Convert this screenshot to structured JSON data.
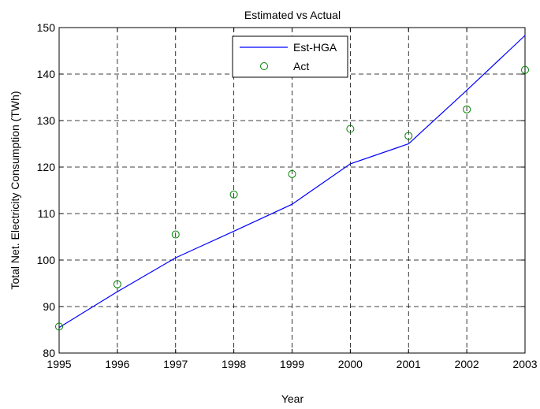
{
  "chart_data": {
    "type": "line",
    "title": "Estimated vs Actual",
    "xlabel": "Year",
    "ylabel": "Total Net. Electricity Consumption (TWh)",
    "xlim": [
      1995,
      2003
    ],
    "ylim": [
      80,
      150
    ],
    "xticks": [
      "1995",
      "1996",
      "1997",
      "1998",
      "1999",
      "2000",
      "2001",
      "2002",
      "2003"
    ],
    "yticks": [
      "80",
      "90",
      "100",
      "110",
      "120",
      "130",
      "140",
      "150"
    ],
    "grid": true,
    "legend_position": "top-center",
    "x": [
      1995,
      1996,
      1997,
      1998,
      1999,
      2000,
      2001,
      2002,
      2003
    ],
    "series": [
      {
        "name": "Est-HGA",
        "style": "line",
        "color": "#0000ff",
        "values": [
          85.5,
          93.2,
          100.5,
          106.2,
          112.0,
          120.7,
          125.0,
          136.5,
          148.3
        ]
      },
      {
        "name": "Act",
        "style": "marker-circle",
        "color": "#008000",
        "values": [
          85.7,
          94.8,
          105.5,
          114.1,
          118.5,
          128.2,
          126.7,
          132.4,
          140.9
        ]
      }
    ]
  }
}
